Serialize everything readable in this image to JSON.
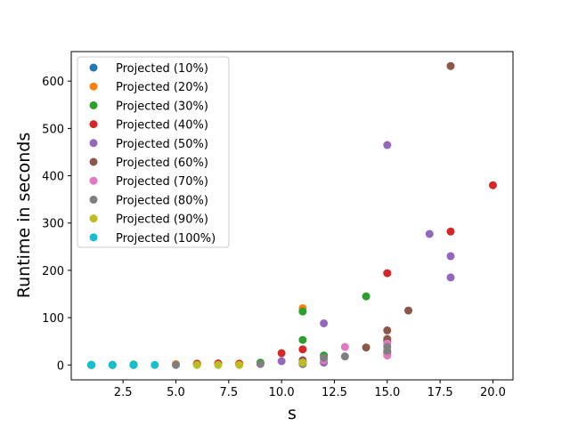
{
  "chart_data": {
    "type": "scatter",
    "xlabel": "s",
    "ylabel": "Runtime in seconds",
    "xlim": [
      0.05,
      20.95
    ],
    "ylim": [
      -31.5,
      662.5
    ],
    "xticks": [
      2.5,
      5.0,
      7.5,
      10.0,
      12.5,
      15.0,
      17.5,
      20.0
    ],
    "xtick_labels": [
      "2.5",
      "5.0",
      "7.5",
      "10.0",
      "12.5",
      "15.0",
      "17.5",
      "20.0"
    ],
    "yticks": [
      0,
      100,
      200,
      300,
      400,
      500,
      600
    ],
    "ytick_labels": [
      "0",
      "100",
      "200",
      "300",
      "400",
      "500",
      "600"
    ],
    "grid": false,
    "legend_position": "upper-left",
    "series": [
      {
        "name": "Projected (10%)",
        "color": "#1f77b4",
        "points": [
          [
            1,
            0
          ],
          [
            1,
            0
          ],
          [
            1,
            0
          ],
          [
            1,
            0
          ],
          [
            2,
            0
          ],
          [
            3,
            0
          ]
        ]
      },
      {
        "name": "Projected (20%)",
        "color": "#ff7f0e",
        "points": [
          [
            1,
            0
          ],
          [
            2,
            0
          ],
          [
            3,
            0
          ],
          [
            5,
            2
          ],
          [
            6,
            3
          ],
          [
            7,
            3
          ],
          [
            8,
            3
          ],
          [
            11,
            120
          ]
        ]
      },
      {
        "name": "Projected (30%)",
        "color": "#2ca02c",
        "points": [
          [
            1,
            0
          ],
          [
            2,
            0
          ],
          [
            3,
            1
          ],
          [
            6,
            2
          ],
          [
            9,
            5
          ],
          [
            11,
            113
          ],
          [
            11,
            53
          ],
          [
            12,
            20
          ],
          [
            14,
            145
          ]
        ]
      },
      {
        "name": "Projected (40%)",
        "color": "#d62728",
        "points": [
          [
            6,
            2
          ],
          [
            7,
            3
          ],
          [
            8,
            2
          ],
          [
            10,
            25
          ],
          [
            11,
            33
          ],
          [
            15,
            194
          ],
          [
            18,
            282
          ],
          [
            20,
            380
          ]
        ]
      },
      {
        "name": "Projected (50%)",
        "color": "#9467bd",
        "points": [
          [
            10,
            8
          ],
          [
            12,
            88
          ],
          [
            12,
            5
          ],
          [
            15,
            465
          ],
          [
            15,
            28
          ],
          [
            17,
            277
          ],
          [
            18,
            230
          ],
          [
            18,
            185
          ]
        ]
      },
      {
        "name": "Projected (60%)",
        "color": "#8c564b",
        "points": [
          [
            11,
            10
          ],
          [
            11,
            2
          ],
          [
            14,
            37
          ],
          [
            15,
            73
          ],
          [
            15,
            55
          ],
          [
            15,
            50
          ],
          [
            15,
            25
          ],
          [
            16,
            115
          ],
          [
            18,
            632
          ]
        ]
      },
      {
        "name": "Projected (70%)",
        "color": "#e377c2",
        "points": [
          [
            11,
            5
          ],
          [
            12,
            10
          ],
          [
            13,
            38
          ],
          [
            15,
            45
          ],
          [
            15,
            20
          ]
        ]
      },
      {
        "name": "Projected (80%)",
        "color": "#7f7f7f",
        "points": [
          [
            1,
            0
          ],
          [
            5,
            0
          ],
          [
            9,
            2
          ],
          [
            11,
            3
          ],
          [
            12,
            15
          ],
          [
            13,
            18
          ],
          [
            15,
            38
          ],
          [
            15,
            30
          ]
        ]
      },
      {
        "name": "Projected (90%)",
        "color": "#bcbd22",
        "points": [
          [
            1,
            0
          ],
          [
            2,
            0
          ],
          [
            6,
            0
          ],
          [
            7,
            0
          ],
          [
            8,
            0
          ],
          [
            11,
            5
          ]
        ]
      },
      {
        "name": "Projected (100%)",
        "color": "#17becf",
        "points": [
          [
            1,
            0
          ],
          [
            1,
            0
          ],
          [
            2,
            0
          ],
          [
            3,
            0
          ],
          [
            4,
            0
          ]
        ]
      }
    ]
  }
}
